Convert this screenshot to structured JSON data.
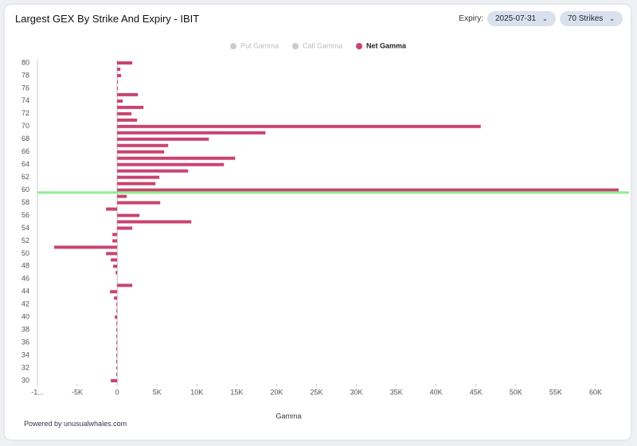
{
  "header": {
    "title": "Largest GEX By Strike And Expiry - IBIT",
    "expiry_label": "Expiry:",
    "expiry": "2025-07-31",
    "strikes": "70 Strikes"
  },
  "footer": "Powered by unusualwhales.com",
  "chart_data": {
    "type": "hbar",
    "xlabel": "Gamma",
    "categories": [
      80,
      null,
      78,
      null,
      76,
      null,
      74,
      null,
      72,
      null,
      70,
      null,
      68,
      null,
      66,
      null,
      64,
      null,
      62,
      null,
      60,
      null,
      58,
      null,
      56,
      null,
      54,
      null,
      52,
      null,
      50,
      null,
      48,
      null,
      46,
      null,
      44,
      null,
      42,
      null,
      40,
      null,
      38,
      null,
      36,
      null,
      34,
      null,
      32,
      null,
      30
    ],
    "series": [
      {
        "name": "Net Gamma",
        "color": "#c8446f",
        "values": [
          1900,
          400,
          500,
          100,
          100,
          2600,
          700,
          3300,
          1800,
          2500,
          45600,
          18600,
          11500,
          6400,
          5900,
          14800,
          13400,
          8900,
          5300,
          4800,
          62900,
          1200,
          5400,
          -1400,
          2800,
          9300,
          1900,
          -600,
          -600,
          -7900,
          -1400,
          -800,
          -500,
          -200,
          0,
          1900,
          -900,
          -400,
          -100,
          -100,
          -300,
          -100,
          -100,
          -100,
          -100,
          -100,
          -100,
          -100,
          -100,
          -100,
          -800
        ]
      }
    ],
    "inactive_legend": [
      {
        "name": "Put Gamma",
        "color": "#cccccc"
      },
      {
        "name": "Call Gamma",
        "color": "#cccccc"
      }
    ],
    "xlim": [
      -10000,
      63000
    ],
    "xticks": [
      {
        "value": -10000,
        "label": "-1..."
      },
      {
        "value": -5000,
        "label": "-5K"
      },
      0,
      {
        "value": 5000,
        "label": "5K"
      },
      {
        "value": 10000,
        "label": "10K"
      },
      {
        "value": 15000,
        "label": "15K"
      },
      {
        "value": 20000,
        "label": "20K"
      },
      {
        "value": 25000,
        "label": "25K"
      },
      {
        "value": 30000,
        "label": "30K"
      },
      {
        "value": 35000,
        "label": "35K"
      },
      {
        "value": 40000,
        "label": "40K"
      },
      {
        "value": 45000,
        "label": "45K"
      },
      {
        "value": 50000,
        "label": "50K"
      },
      {
        "value": 55000,
        "label": "55K"
      },
      {
        "value": 60000,
        "label": "60K"
      }
    ],
    "reference_line": {
      "value": 59.6,
      "color": "#90ee90"
    }
  }
}
